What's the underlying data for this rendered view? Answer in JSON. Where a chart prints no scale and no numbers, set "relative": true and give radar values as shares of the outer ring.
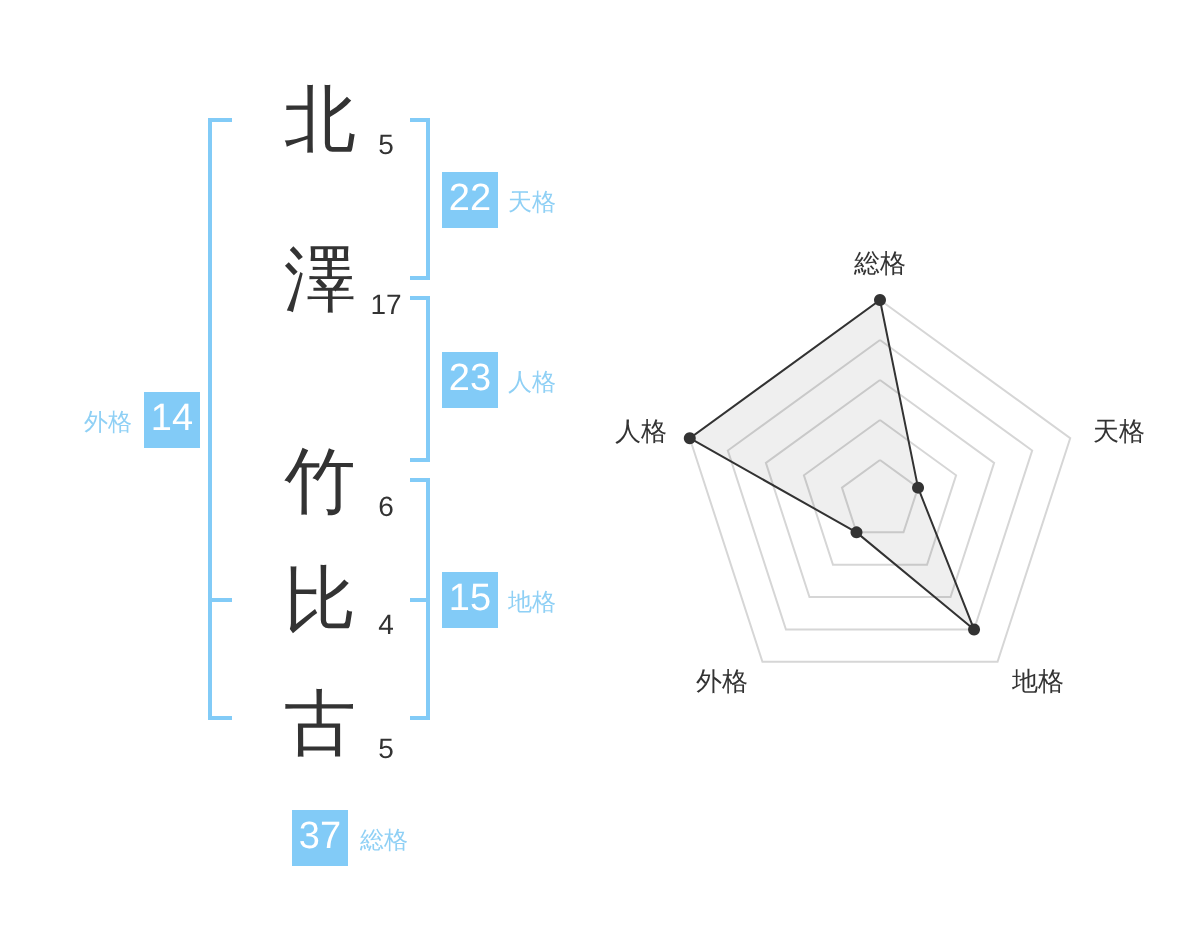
{
  "chart_data": [
    {
      "type": "other",
      "annotations": [
        "北",
        "5",
        "澤",
        "17",
        "竹",
        "6",
        "比",
        "4",
        "古",
        "5",
        "22",
        "天格",
        "23",
        "人格",
        "15",
        "地格",
        "14",
        "外格",
        "37",
        "総格"
      ]
    },
    {
      "type": "radar",
      "relative": true,
      "categories": [
        "総格",
        "天格",
        "地格",
        "外格",
        "人格"
      ],
      "series": [
        {
          "color": "#333333",
          "values": [
            1,
            0.2,
            0.8,
            0.2,
            1
          ]
        }
      ],
      "marker": "circle",
      "grid": true
    }
  ]
}
